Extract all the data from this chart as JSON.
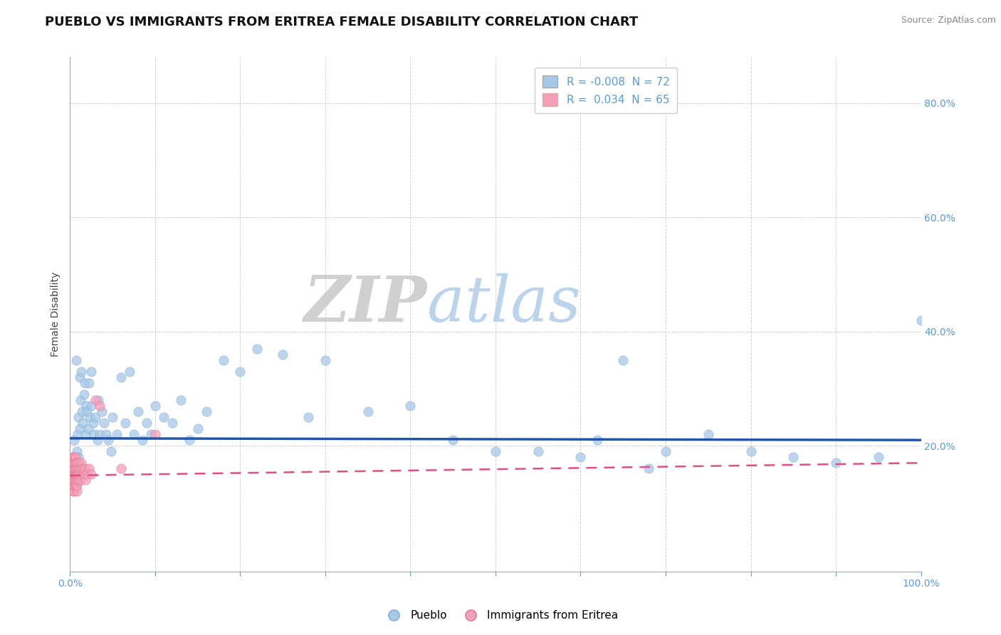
{
  "title": "PUEBLO VS IMMIGRANTS FROM ERITREA FEMALE DISABILITY CORRELATION CHART",
  "source": "Source: ZipAtlas.com",
  "ylabel": "Female Disability",
  "watermark_zip": "ZIP",
  "watermark_atlas": "atlas",
  "xlim": [
    0,
    1.0
  ],
  "ylim": [
    -0.02,
    0.88
  ],
  "x_ticks": [
    0.0,
    0.1,
    0.2,
    0.3,
    0.4,
    0.5,
    0.6,
    0.7,
    0.8,
    0.9,
    1.0
  ],
  "x_tick_labels_show": {
    "0.0": "0.0%",
    "1.0": "100.0%"
  },
  "right_y_ticks": [
    0.2,
    0.4,
    0.6,
    0.8
  ],
  "right_y_tick_labels": [
    "20.0%",
    "40.0%",
    "60.0%",
    "80.0%"
  ],
  "legend1_label": "Pueblo",
  "legend2_label": "Immigrants from Eritrea",
  "series1": {
    "name": "Pueblo",
    "R": -0.008,
    "N": 72,
    "color": "#a8c8e8",
    "edge_color": "#7aafd4",
    "trend_color": "#2255aa",
    "trend_intercept": 0.213,
    "trend_slope": -0.003,
    "x": [
      0.005,
      0.007,
      0.008,
      0.009,
      0.01,
      0.01,
      0.011,
      0.011,
      0.012,
      0.013,
      0.014,
      0.015,
      0.016,
      0.017,
      0.018,
      0.019,
      0.02,
      0.021,
      0.022,
      0.023,
      0.025,
      0.025,
      0.027,
      0.028,
      0.03,
      0.032,
      0.033,
      0.035,
      0.037,
      0.04,
      0.042,
      0.045,
      0.048,
      0.05,
      0.055,
      0.06,
      0.065,
      0.07,
      0.075,
      0.08,
      0.085,
      0.09,
      0.095,
      0.1,
      0.11,
      0.12,
      0.13,
      0.14,
      0.15,
      0.16,
      0.18,
      0.2,
      0.22,
      0.25,
      0.28,
      0.3,
      0.35,
      0.4,
      0.45,
      0.5,
      0.55,
      0.6,
      0.65,
      0.7,
      0.75,
      0.8,
      0.85,
      0.9,
      0.95,
      1.0,
      0.62,
      0.68
    ],
    "y": [
      0.21,
      0.35,
      0.19,
      0.22,
      0.25,
      0.18,
      0.32,
      0.23,
      0.28,
      0.33,
      0.26,
      0.24,
      0.29,
      0.31,
      0.22,
      0.27,
      0.26,
      0.23,
      0.31,
      0.25,
      0.33,
      0.27,
      0.24,
      0.22,
      0.25,
      0.21,
      0.28,
      0.22,
      0.26,
      0.24,
      0.22,
      0.21,
      0.19,
      0.25,
      0.22,
      0.32,
      0.24,
      0.33,
      0.22,
      0.26,
      0.21,
      0.24,
      0.22,
      0.27,
      0.25,
      0.24,
      0.28,
      0.21,
      0.23,
      0.26,
      0.35,
      0.33,
      0.37,
      0.36,
      0.25,
      0.35,
      0.26,
      0.27,
      0.21,
      0.19,
      0.19,
      0.18,
      0.35,
      0.19,
      0.22,
      0.19,
      0.18,
      0.17,
      0.18,
      0.42,
      0.21,
      0.16
    ]
  },
  "series2": {
    "name": "Immigrants from Eritrea",
    "R": 0.034,
    "N": 65,
    "color": "#f4a0b8",
    "edge_color": "#e07090",
    "trend_color": "#e05080",
    "trend_intercept": 0.148,
    "trend_slope": 0.022,
    "x": [
      0.001,
      0.001,
      0.001,
      0.001,
      0.002,
      0.002,
      0.002,
      0.002,
      0.002,
      0.003,
      0.003,
      0.003,
      0.003,
      0.003,
      0.003,
      0.004,
      0.004,
      0.004,
      0.004,
      0.004,
      0.005,
      0.005,
      0.005,
      0.005,
      0.005,
      0.005,
      0.005,
      0.006,
      0.006,
      0.006,
      0.006,
      0.006,
      0.006,
      0.007,
      0.007,
      0.007,
      0.007,
      0.007,
      0.008,
      0.008,
      0.008,
      0.008,
      0.009,
      0.009,
      0.009,
      0.01,
      0.01,
      0.01,
      0.011,
      0.011,
      0.012,
      0.012,
      0.013,
      0.014,
      0.015,
      0.016,
      0.017,
      0.018,
      0.02,
      0.022,
      0.025,
      0.03,
      0.035,
      0.06,
      0.1
    ],
    "y": [
      0.14,
      0.15,
      0.16,
      0.17,
      0.14,
      0.15,
      0.16,
      0.17,
      0.18,
      0.12,
      0.13,
      0.14,
      0.15,
      0.16,
      0.17,
      0.13,
      0.14,
      0.15,
      0.16,
      0.17,
      0.12,
      0.13,
      0.14,
      0.15,
      0.16,
      0.17,
      0.18,
      0.13,
      0.14,
      0.15,
      0.16,
      0.17,
      0.18,
      0.13,
      0.14,
      0.15,
      0.16,
      0.17,
      0.12,
      0.13,
      0.15,
      0.17,
      0.14,
      0.15,
      0.16,
      0.14,
      0.15,
      0.17,
      0.15,
      0.16,
      0.14,
      0.16,
      0.17,
      0.15,
      0.16,
      0.15,
      0.16,
      0.14,
      0.15,
      0.16,
      0.15,
      0.28,
      0.27,
      0.16,
      0.22
    ]
  },
  "background_color": "#ffffff",
  "grid_color": "#cccccc",
  "tick_color": "#5b9bd5",
  "title_fontsize": 13,
  "axis_label_fontsize": 10,
  "tick_fontsize": 10,
  "legend_fontsize": 11
}
